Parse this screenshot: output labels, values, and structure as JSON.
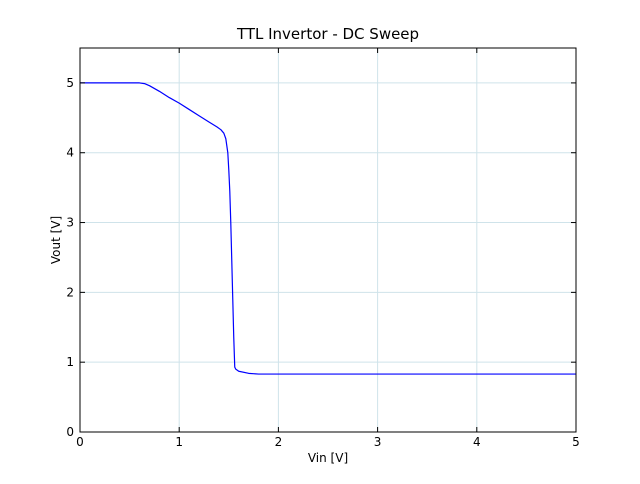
{
  "chart_data": {
    "type": "line",
    "title": "TTL Invertor - DC Sweep",
    "xlabel": "Vin [V]",
    "ylabel": "Vout [V]",
    "xlim": [
      0,
      5
    ],
    "ylim": [
      0,
      5.5
    ],
    "xticks": [
      "0",
      "1",
      "2",
      "3",
      "4",
      "5"
    ],
    "yticks": [
      "0",
      "1",
      "2",
      "3",
      "4",
      "5"
    ],
    "grid": true,
    "series": [
      {
        "color": "#0000ff",
        "x": [
          0,
          0.2,
          0.4,
          0.6,
          0.65,
          0.7,
          0.8,
          0.9,
          1.0,
          1.1,
          1.2,
          1.3,
          1.38,
          1.42,
          1.45,
          1.47,
          1.49,
          1.5,
          1.51,
          1.52,
          1.53,
          1.54,
          1.55,
          1.56,
          1.57,
          1.6,
          1.7,
          1.8,
          2.0,
          3.0,
          4.0,
          5.0
        ],
        "y": [
          5.0,
          5.0,
          5.0,
          5.0,
          4.99,
          4.96,
          4.88,
          4.79,
          4.71,
          4.62,
          4.53,
          4.44,
          4.37,
          4.33,
          4.28,
          4.2,
          4.0,
          3.75,
          3.45,
          3.0,
          2.45,
          1.9,
          1.35,
          0.93,
          0.9,
          0.87,
          0.84,
          0.83,
          0.83,
          0.83,
          0.83,
          0.83
        ]
      }
    ]
  }
}
